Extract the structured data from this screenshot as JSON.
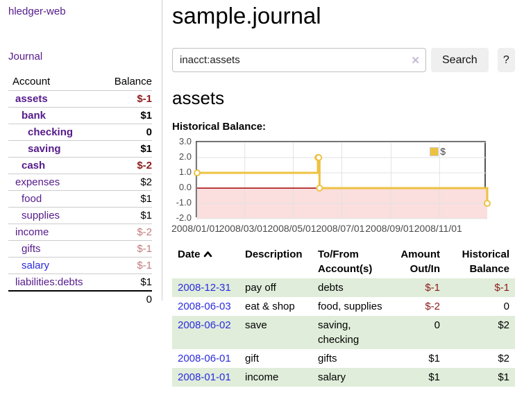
{
  "app": {
    "brand": "hledger-web"
  },
  "sidebar": {
    "journal_label": "Journal",
    "accounts": {
      "header": {
        "account": "Account",
        "balance": "Balance"
      },
      "rows": [
        {
          "name": "assets",
          "balance": "$-1"
        },
        {
          "name": "bank",
          "balance": "$1"
        },
        {
          "name": "checking",
          "balance": "0"
        },
        {
          "name": "saving",
          "balance": "$1"
        },
        {
          "name": "cash",
          "balance": "$-2"
        },
        {
          "name": "expenses",
          "balance": "$2"
        },
        {
          "name": "food",
          "balance": "$1"
        },
        {
          "name": "supplies",
          "balance": "$1"
        },
        {
          "name": "income",
          "balance": "$-2"
        },
        {
          "name": "gifts",
          "balance": "$-1"
        },
        {
          "name": "salary",
          "balance": "$-1"
        },
        {
          "name": "liabilities:debts",
          "balance": "$1"
        }
      ],
      "total": "0"
    }
  },
  "main": {
    "title": "sample.journal",
    "search": {
      "value": "inacct:assets",
      "clear_icon": "✕",
      "button_label": "Search",
      "help_label": "?"
    },
    "account_heading": "assets",
    "chart_heading": "Historical Balance:"
  },
  "chart_data": {
    "type": "line",
    "title": "Historical Balance",
    "legend": [
      {
        "label": "$",
        "color": "#EDC240"
      }
    ],
    "xrange": [
      "2008-01-01",
      "2008-12-31"
    ],
    "ylim": [
      -2,
      3
    ],
    "x_ticks": [
      "2008/01/01",
      "2008/03/01",
      "2008/05/01",
      "2008/07/01",
      "2008/09/01",
      "2008/11/01"
    ],
    "y_ticks": [
      3.0,
      2.0,
      1.0,
      0.0,
      -1.0,
      -2.0
    ],
    "series": [
      {
        "name": "$",
        "step": "after",
        "points": [
          [
            "2008-01-01",
            1
          ],
          [
            "2008-06-01",
            2
          ],
          [
            "2008-06-02",
            2
          ],
          [
            "2008-06-03",
            0
          ],
          [
            "2008-12-31",
            -1
          ]
        ]
      }
    ],
    "styles": {
      "line": "#EDC240",
      "grid": "#E2E2E2",
      "zero_line": "#A00000",
      "negative_fill": "#FBDEDE",
      "border": "#545454"
    }
  },
  "register": {
    "headers": {
      "date": "Date",
      "description": "Description",
      "accounts": "To/From Account(s)",
      "amount": "Amount Out/In",
      "balance": "Historical Balance"
    },
    "rows": [
      {
        "date": "2008-12-31",
        "description": "pay off",
        "accounts": "debts",
        "amount": "$-1",
        "balance": "$-1"
      },
      {
        "date": "2008-06-03",
        "description": "eat & shop",
        "accounts": "food, supplies",
        "amount": "$-2",
        "balance": "0"
      },
      {
        "date": "2008-06-02",
        "description": "save",
        "accounts": "saving, checking",
        "amount": "0",
        "balance": "$2"
      },
      {
        "date": "2008-06-01",
        "description": "gift",
        "accounts": "gifts",
        "amount": "$1",
        "balance": "$2"
      },
      {
        "date": "2008-01-01",
        "description": "income",
        "accounts": "salary",
        "amount": "$1",
        "balance": "$1"
      }
    ]
  }
}
